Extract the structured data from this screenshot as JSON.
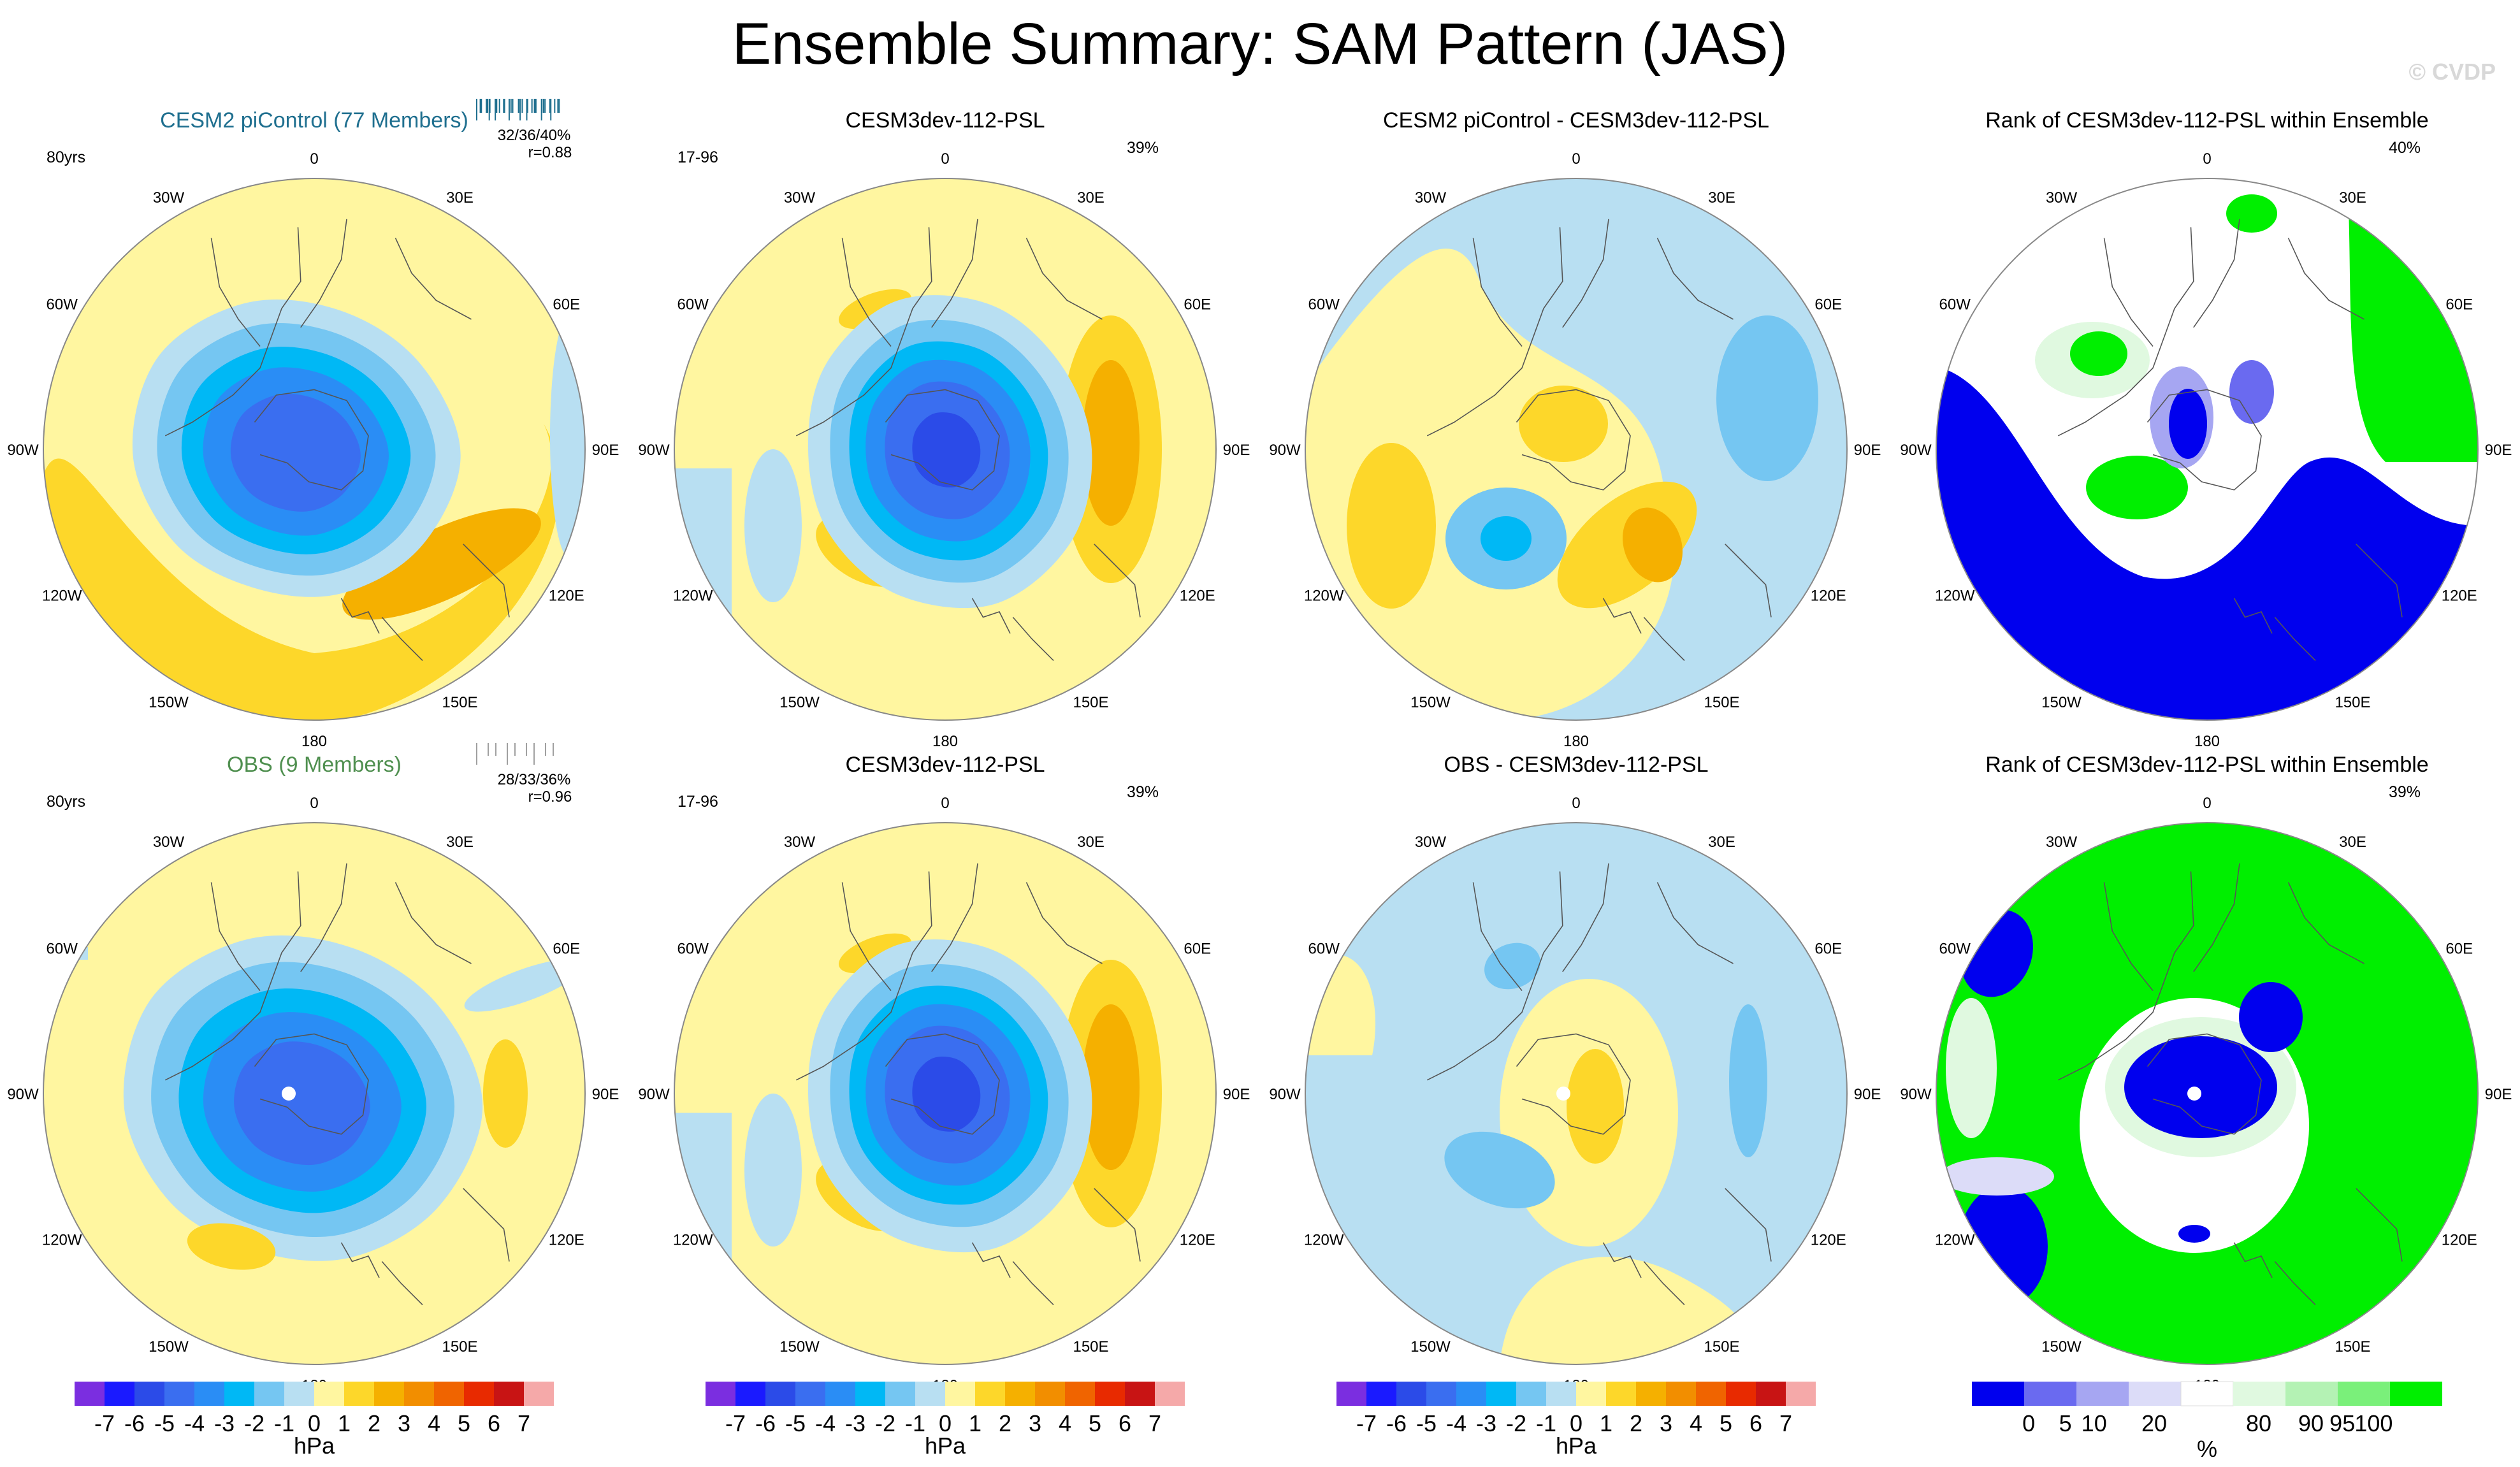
{
  "figure": {
    "title": "Ensemble Summary: SAM Pattern (JAS)",
    "watermark": "© CVDP"
  },
  "colors": {
    "diverging": [
      "#7b2ee0",
      "#1a1aff",
      "#2b4be8",
      "#3a6ef0",
      "#2a8df5",
      "#00b8f5",
      "#75c6f2",
      "#b8dff2",
      "#fff6a0",
      "#fdd72a",
      "#f5b000",
      "#f28e00",
      "#f06400",
      "#e82a00",
      "#c81414",
      "#f5a9a9"
    ],
    "rank": [
      "#0000ee",
      "#6a6af0",
      "#a6a6f2",
      "#dcdcf8",
      "#ffffff",
      "#e0f9e0",
      "#b4f2b4",
      "#7af07a",
      "#00ef00"
    ]
  },
  "panels": [
    {
      "title": "CESM2 piControl (77 Members)",
      "title_color": "#1f6f8f",
      "left_label": "80yrs",
      "right_label": "",
      "stat_line1": "32/36/40%",
      "stat_line2": "r=0.88",
      "bars": "blue",
      "mode": "ens"
    },
    {
      "title": "CESM3dev-112-PSL",
      "title_color": "#000000",
      "left_label": "17-96",
      "right_label": "39%",
      "mode": "model"
    },
    {
      "title": "CESM2 piControl - CESM3dev-112-PSL",
      "title_color": "#000000",
      "left_label": "",
      "right_label": "",
      "mode": "diff1"
    },
    {
      "title": "Rank of CESM3dev-112-PSL within Ensemble",
      "title_color": "#000000",
      "left_label": "",
      "right_label": "40%",
      "mode": "rank1"
    },
    {
      "title": "OBS (9 Members)",
      "title_color": "#4f8f4f",
      "left_label": "80yrs",
      "right_label": "",
      "stat_line1": "28/33/36%",
      "stat_line2": "r=0.96",
      "bars": "gray",
      "mode": "obs"
    },
    {
      "title": "CESM3dev-112-PSL",
      "title_color": "#000000",
      "left_label": "17-96",
      "right_label": "39%",
      "mode": "model"
    },
    {
      "title": "OBS - CESM3dev-112-PSL",
      "title_color": "#000000",
      "left_label": "",
      "right_label": "",
      "mode": "diff2"
    },
    {
      "title": "Rank of CESM3dev-112-PSL within Ensemble",
      "title_color": "#000000",
      "left_label": "",
      "right_label": "39%",
      "mode": "rank2"
    }
  ],
  "chart_data": {
    "type": "heatmap",
    "projection": "south polar stereographic",
    "lon_labels": [
      "0",
      "30E",
      "60E",
      "90E",
      "120E",
      "150E",
      "180",
      "150W",
      "120W",
      "90W",
      "60W",
      "30W"
    ],
    "diverging_colorbar": {
      "tick_labels": [
        "-7",
        "-6",
        "-5",
        "-4",
        "-3",
        "-2",
        "-1",
        "0",
        "1",
        "2",
        "3",
        "4",
        "5",
        "6",
        "7"
      ],
      "units": "hPa"
    },
    "rank_colorbar": {
      "tick_labels": [
        "0",
        "5",
        "10",
        "20",
        "80",
        "90",
        "95",
        "100"
      ],
      "units": "%"
    }
  }
}
